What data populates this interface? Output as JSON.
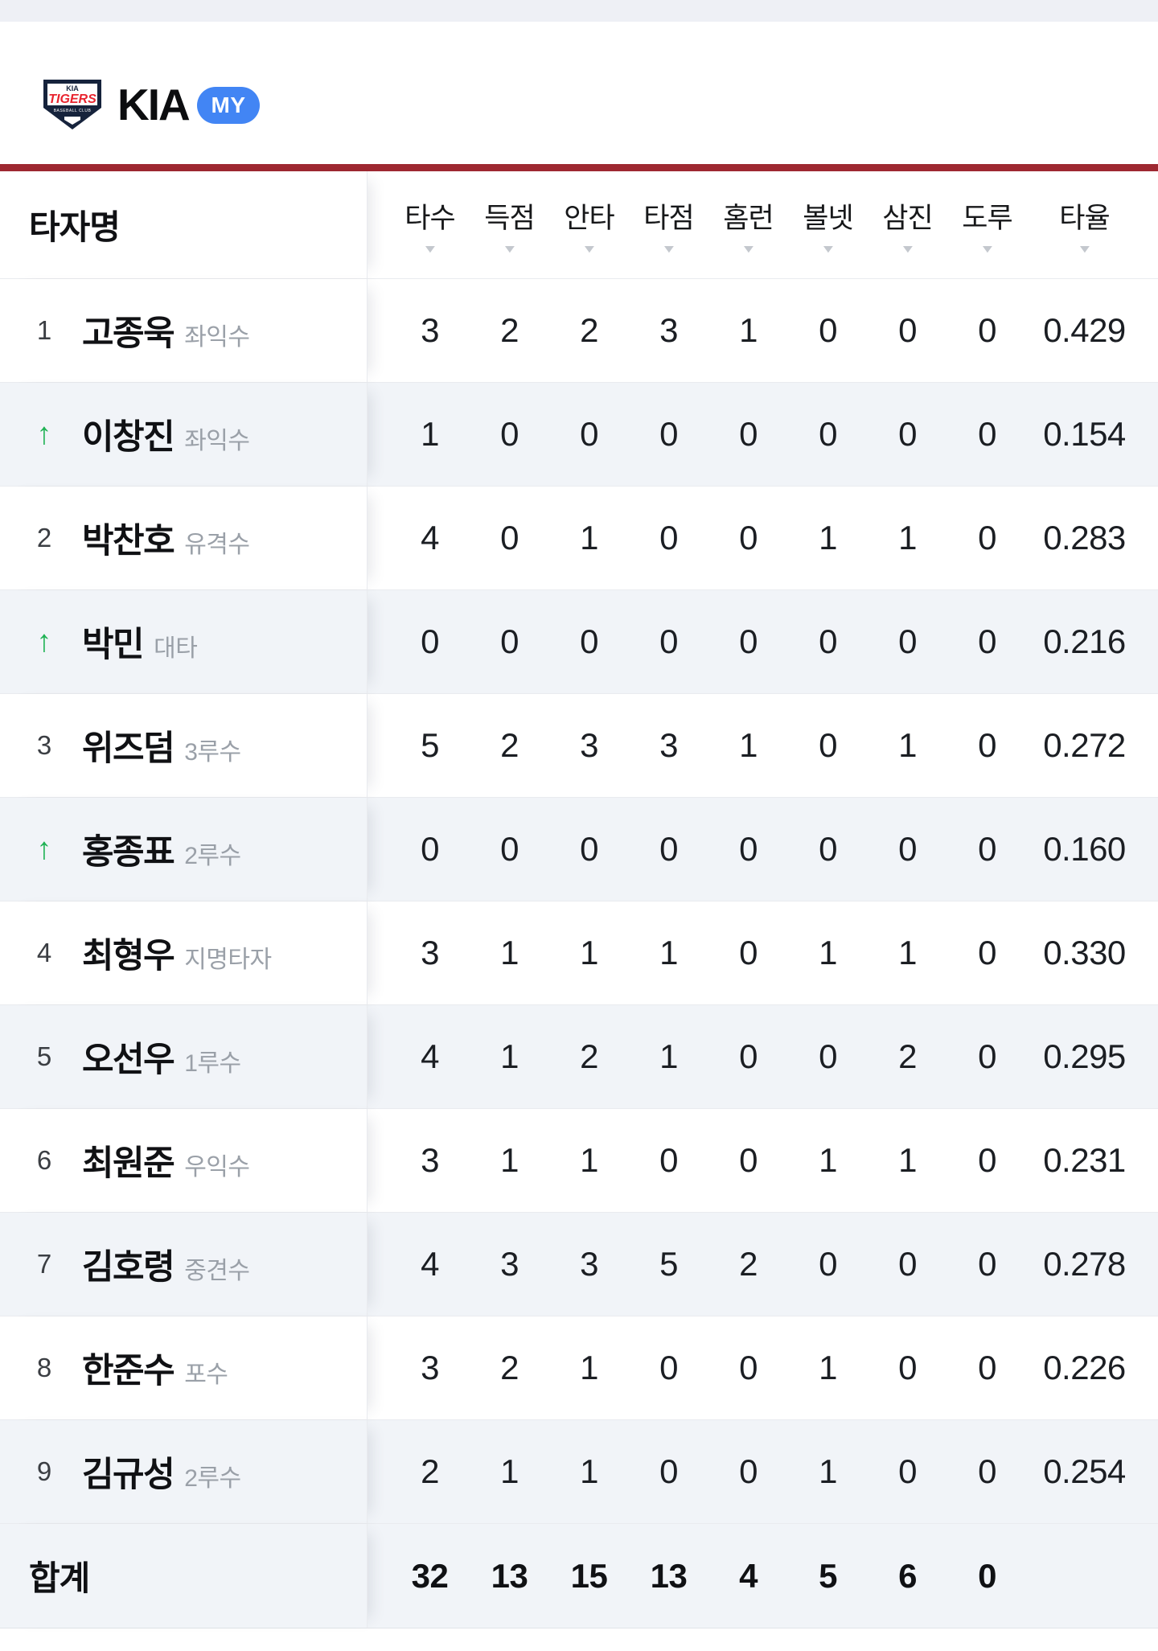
{
  "team_header": {
    "team_name": "KIA",
    "badge": "MY",
    "logo": {
      "kia": "KIA",
      "tigers": "TIGERS",
      "club": "BASEBALL CLUB"
    }
  },
  "icons": {
    "sort": "▼",
    "substitute_arrow": "↑"
  },
  "colors": {
    "accent_red": "#9e2831",
    "badge_blue": "#4285f4",
    "arrow_green": "#1fb254",
    "logo_navy": "#16233c",
    "logo_red": "#e8232e",
    "row_alt_bg": "#f1f4f8"
  },
  "table": {
    "name_column_header": "타자명",
    "stat_columns": [
      "타수",
      "득점",
      "안타",
      "타점",
      "홈런",
      "볼넷",
      "삼진",
      "도루",
      "타율"
    ],
    "rows": [
      {
        "order": "1",
        "is_substitute": false,
        "name": "고종욱",
        "position": "좌익수",
        "stats": [
          "3",
          "2",
          "2",
          "3",
          "1",
          "0",
          "0",
          "0",
          "0.429"
        ]
      },
      {
        "order": "",
        "is_substitute": true,
        "name": "이창진",
        "position": "좌익수",
        "stats": [
          "1",
          "0",
          "0",
          "0",
          "0",
          "0",
          "0",
          "0",
          "0.154"
        ]
      },
      {
        "order": "2",
        "is_substitute": false,
        "name": "박찬호",
        "position": "유격수",
        "stats": [
          "4",
          "0",
          "1",
          "0",
          "0",
          "1",
          "1",
          "0",
          "0.283"
        ]
      },
      {
        "order": "",
        "is_substitute": true,
        "name": "박민",
        "position": "대타",
        "stats": [
          "0",
          "0",
          "0",
          "0",
          "0",
          "0",
          "0",
          "0",
          "0.216"
        ]
      },
      {
        "order": "3",
        "is_substitute": false,
        "name": "위즈덤",
        "position": "3루수",
        "stats": [
          "5",
          "2",
          "3",
          "3",
          "1",
          "0",
          "1",
          "0",
          "0.272"
        ]
      },
      {
        "order": "",
        "is_substitute": true,
        "name": "홍종표",
        "position": "2루수",
        "stats": [
          "0",
          "0",
          "0",
          "0",
          "0",
          "0",
          "0",
          "0",
          "0.160"
        ]
      },
      {
        "order": "4",
        "is_substitute": false,
        "name": "최형우",
        "position": "지명타자",
        "stats": [
          "3",
          "1",
          "1",
          "1",
          "0",
          "1",
          "1",
          "0",
          "0.330"
        ]
      },
      {
        "order": "5",
        "is_substitute": false,
        "name": "오선우",
        "position": "1루수",
        "stats": [
          "4",
          "1",
          "2",
          "1",
          "0",
          "0",
          "2",
          "0",
          "0.295"
        ]
      },
      {
        "order": "6",
        "is_substitute": false,
        "name": "최원준",
        "position": "우익수",
        "stats": [
          "3",
          "1",
          "1",
          "0",
          "0",
          "1",
          "1",
          "0",
          "0.231"
        ]
      },
      {
        "order": "7",
        "is_substitute": false,
        "name": "김호령",
        "position": "중견수",
        "stats": [
          "4",
          "3",
          "3",
          "5",
          "2",
          "0",
          "0",
          "0",
          "0.278"
        ]
      },
      {
        "order": "8",
        "is_substitute": false,
        "name": "한준수",
        "position": "포수",
        "stats": [
          "3",
          "2",
          "1",
          "0",
          "0",
          "1",
          "0",
          "0",
          "0.226"
        ]
      },
      {
        "order": "9",
        "is_substitute": false,
        "name": "김규성",
        "position": "2루수",
        "stats": [
          "2",
          "1",
          "1",
          "0",
          "0",
          "1",
          "0",
          "0",
          "0.254"
        ]
      }
    ],
    "total": {
      "label": "합계",
      "stats": [
        "32",
        "13",
        "15",
        "13",
        "4",
        "5",
        "6",
        "0",
        ""
      ]
    }
  }
}
